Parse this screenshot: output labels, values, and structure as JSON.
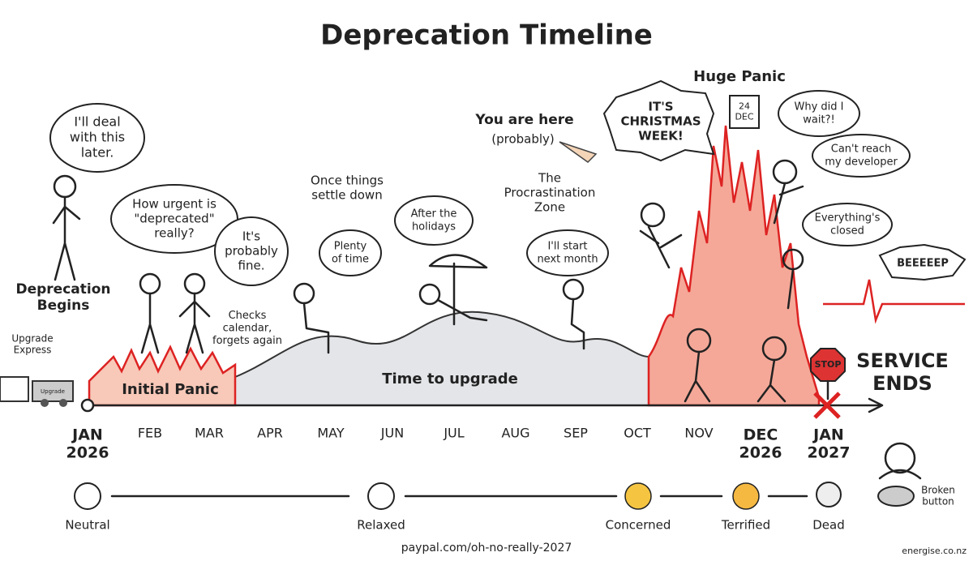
{
  "title": "Deprecation Timeline",
  "labels": [
    {
      "lines": [
        "I'll deal",
        "with this",
        "later."
      ]
    },
    {
      "lines": [
        "Deprecation",
        "Begins"
      ]
    },
    {
      "lines": [
        "Upgrade",
        "Express"
      ]
    },
    {
      "lines": [
        "How urgent is",
        "\"deprecated\"",
        "really?"
      ]
    },
    {
      "lines": [
        "It's",
        "probably",
        "fine."
      ]
    },
    {
      "lines": [
        "Checks",
        "calendar,",
        "forgets again"
      ]
    },
    {
      "lines": [
        "Once things",
        "settle down"
      ]
    },
    {
      "lines": [
        "Plenty",
        "of time"
      ]
    },
    {
      "lines": [
        "After the",
        "holidays"
      ]
    },
    {
      "lines": [
        "The",
        "Procrastination",
        "Zone"
      ]
    },
    {
      "lines": [
        "I'll start",
        "next month"
      ]
    },
    {
      "lines": [
        "You are here"
      ]
    },
    {
      "lines": [
        "(probably)"
      ]
    },
    {
      "lines": [
        "IT'S",
        "CHRISTMAS",
        "WEEK!"
      ]
    },
    {
      "lines": [
        "24",
        "DEC"
      ]
    },
    {
      "lines": [
        "Why did I",
        "wait?!"
      ]
    },
    {
      "lines": [
        "Can't reach",
        "my developer"
      ]
    },
    {
      "lines": [
        "Everything's",
        "closed"
      ]
    },
    {
      "lines": [
        "BEEEEEP"
      ]
    },
    {
      "lines": [
        "Upgrade"
      ]
    }
  ],
  "phases": [
    {
      "lines": [
        "Initial Panic"
      ]
    },
    {
      "lines": [
        "Time to upgrade"
      ]
    },
    {
      "lines": [
        "Huge Panic"
      ]
    },
    {
      "lines": [
        "SERVICE",
        "ENDS"
      ]
    }
  ],
  "months": [
    {
      "lines": [
        "JAN",
        "2026"
      ]
    },
    {
      "lines": [
        "FEB"
      ]
    },
    {
      "lines": [
        "MAR"
      ]
    },
    {
      "lines": [
        "APR"
      ]
    },
    {
      "lines": [
        "MAY"
      ]
    },
    {
      "lines": [
        "JUN"
      ]
    },
    {
      "lines": [
        "JUL"
      ]
    },
    {
      "lines": [
        "AUG"
      ]
    },
    {
      "lines": [
        "SEP"
      ]
    },
    {
      "lines": [
        "OCT"
      ]
    },
    {
      "lines": [
        "NOV"
      ]
    },
    {
      "lines": [
        "DEC",
        "2026"
      ]
    },
    {
      "lines": [
        "JAN",
        "2027"
      ]
    }
  ],
  "stop_sign": "STOP",
  "moods": [
    {
      "lines": [
        "Neutral"
      ]
    },
    {
      "lines": [
        "Relaxed"
      ]
    },
    {
      "lines": [
        "Concerned"
      ]
    },
    {
      "lines": [
        "Terrified"
      ]
    },
    {
      "lines": [
        "Dead"
      ]
    },
    {
      "lines": [
        "Broken",
        "button"
      ]
    }
  ],
  "footer": "paypal.com/oh-no-really-2027",
  "watermark": "energise.co.nz"
}
